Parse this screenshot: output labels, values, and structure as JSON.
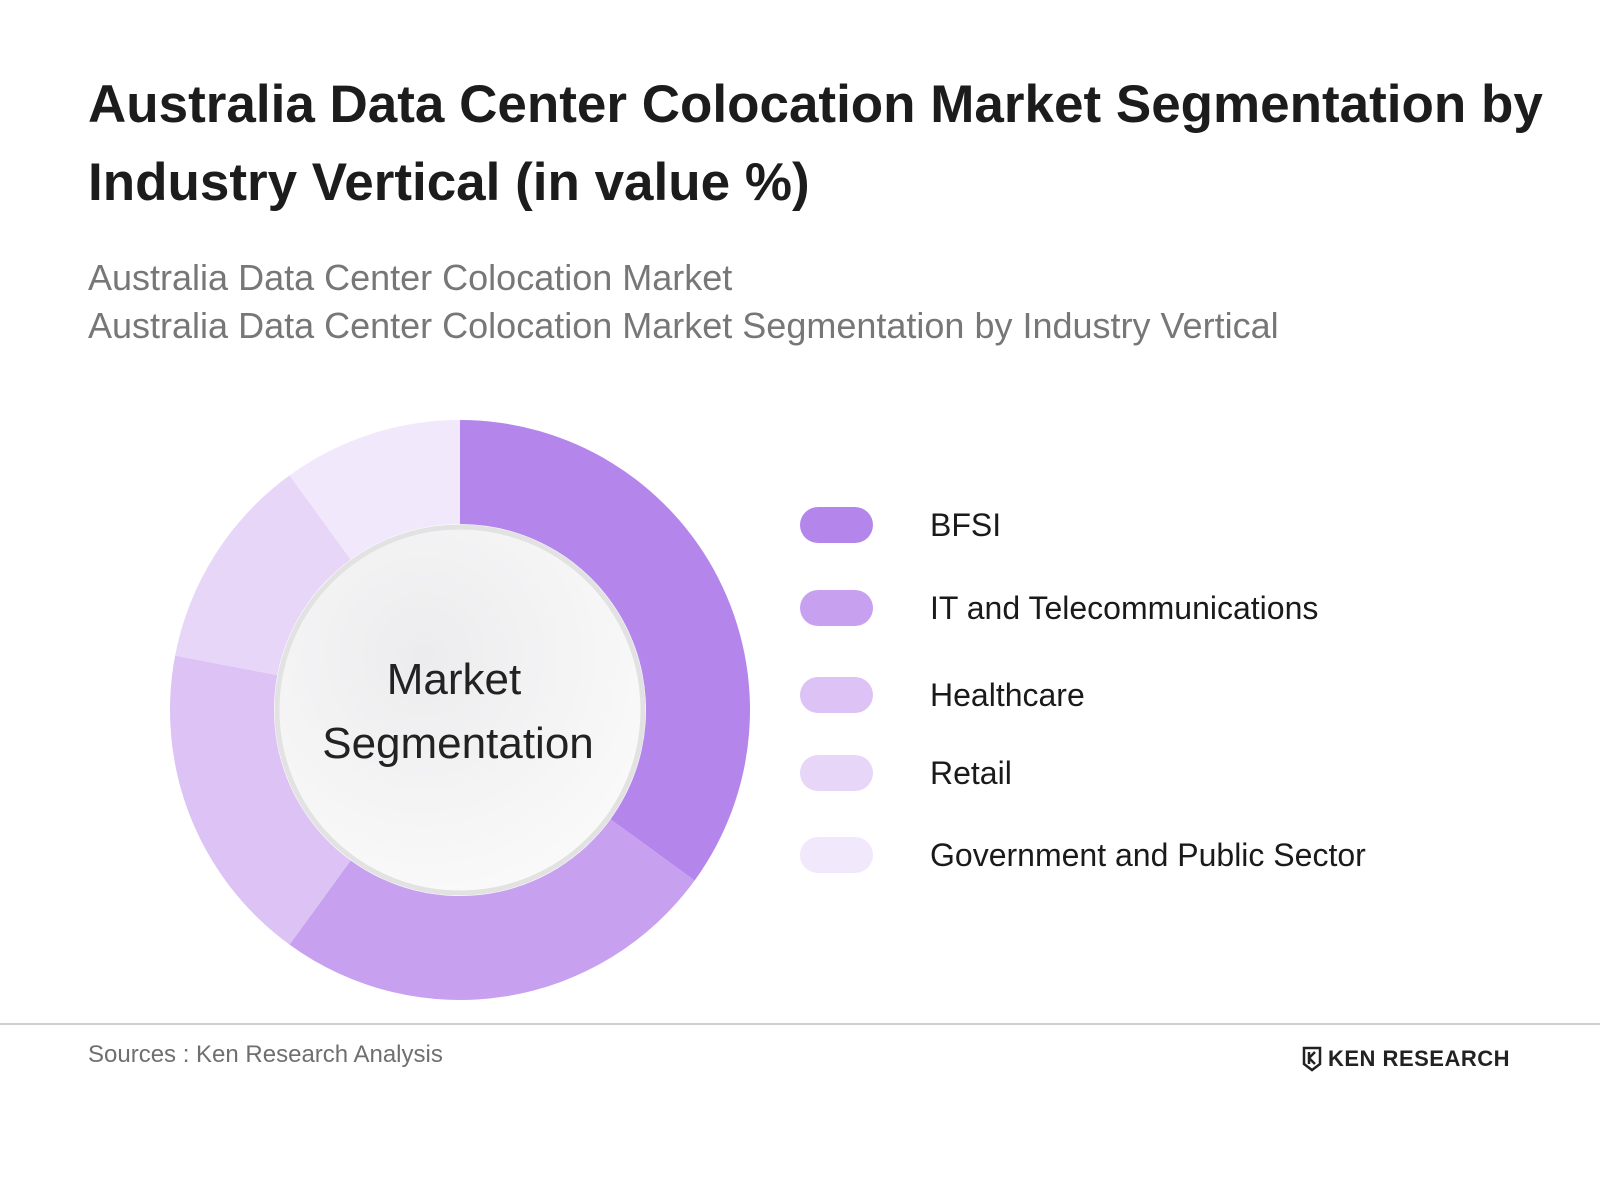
{
  "header": {
    "title": "Australia Data Center Colocation Market Segmentation by Industry Vertical (in value %)",
    "subtitle_lines": [
      "Australia Data Center Colocation Market",
      "Australia Data Center Colocation Market Segmentation by Industry Vertical"
    ]
  },
  "chart_data": {
    "type": "pie",
    "variant": "donut",
    "center_label_lines": [
      "Market",
      "Segmentation"
    ],
    "categories": [
      "BFSI",
      "IT and Telecommunications",
      "Healthcare",
      "Retail",
      "Government and Public Sector"
    ],
    "values": [
      35,
      25,
      18,
      12,
      10
    ],
    "colors": [
      "#b486ec",
      "#c7a0ef",
      "#dcc2f5",
      "#e7d6f8",
      "#f1e8fb"
    ],
    "legend_position": "right"
  },
  "footer": {
    "source": "Sources : Ken Research Analysis",
    "brand": "KEN RESEARCH",
    "brand_icon": "ken-research-logo-icon"
  }
}
